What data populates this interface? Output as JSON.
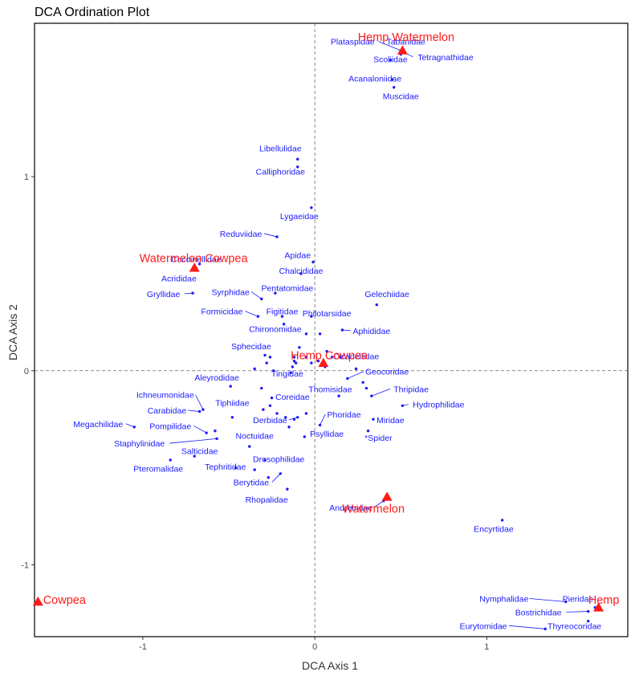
{
  "chart_data": {
    "type": "scatter",
    "title": "DCA Ordination Plot",
    "xlabel": "DCA Axis 1",
    "ylabel": "DCA Axis 2",
    "xlim": [
      -1.63,
      1.82
    ],
    "ylim": [
      -1.37,
      1.79
    ],
    "xticks": [
      -1,
      0,
      1
    ],
    "yticks": [
      -1,
      0,
      1
    ],
    "reference_lines": {
      "x": 0,
      "y": 0,
      "style": "dashed"
    },
    "colors": {
      "family": "#1a1aff",
      "crop": "#ff1a1a",
      "leader": "#1a1aff",
      "frame": "#000000"
    },
    "series": [
      {
        "name": "Families",
        "marker": "dot",
        "points": [
          {
            "label": "Plataspidae",
            "x": 0.5,
            "y": 1.65,
            "lx": 0.22,
            "ly": 1.68
          },
          {
            "label": "Tabanidae",
            "x": 0.5,
            "y": 1.63,
            "lx": 0.53,
            "ly": 1.68
          },
          {
            "label": "Tetragnathidae",
            "x": 0.52,
            "y": 1.64,
            "lx": 0.76,
            "ly": 1.6
          },
          {
            "label": "Scoliidae",
            "x": 0.44,
            "y": 1.6,
            "lx": 0.44,
            "ly": 1.59
          },
          {
            "label": "Acanaloniidae",
            "x": 0.45,
            "y": 1.5,
            "lx": 0.35,
            "ly": 1.49
          },
          {
            "label": "Muscidae",
            "x": 0.46,
            "y": 1.46,
            "lx": 0.5,
            "ly": 1.4
          },
          {
            "label": "Libellulidae",
            "x": -0.1,
            "y": 1.09,
            "lx": -0.2,
            "ly": 1.13
          },
          {
            "label": "Calliphoridae",
            "x": -0.1,
            "y": 1.05,
            "lx": -0.2,
            "ly": 1.01
          },
          {
            "label": "Lygaeidae",
            "x": -0.02,
            "y": 0.84,
            "lx": -0.09,
            "ly": 0.78
          },
          {
            "label": "Reduviidae",
            "x": -0.22,
            "y": 0.69,
            "lx": -0.43,
            "ly": 0.69
          },
          {
            "label": "Coccinellidae",
            "x": -0.67,
            "y": 0.55,
            "lx": -0.69,
            "ly": 0.56
          },
          {
            "label": "Acrididae",
            "x": -0.7,
            "y": 0.53,
            "lx": -0.79,
            "ly": 0.46
          },
          {
            "label": "Gryllidae",
            "x": -0.71,
            "y": 0.4,
            "lx": -0.88,
            "ly": 0.38
          },
          {
            "label": "Apidae",
            "x": -0.01,
            "y": 0.56,
            "lx": -0.1,
            "ly": 0.58
          },
          {
            "label": "Chalcididae",
            "x": -0.08,
            "y": 0.5,
            "lx": -0.08,
            "ly": 0.5
          },
          {
            "label": "Pentatomidae",
            "x": -0.23,
            "y": 0.4,
            "lx": -0.16,
            "ly": 0.41
          },
          {
            "label": "Syrphidae",
            "x": -0.31,
            "y": 0.37,
            "lx": -0.49,
            "ly": 0.39
          },
          {
            "label": "Gelechiidae",
            "x": 0.36,
            "y": 0.34,
            "lx": 0.42,
            "ly": 0.38
          },
          {
            "label": "Formicidae",
            "x": -0.33,
            "y": 0.28,
            "lx": -0.54,
            "ly": 0.29
          },
          {
            "label": "Figitidae",
            "x": -0.19,
            "y": 0.28,
            "lx": -0.19,
            "ly": 0.29
          },
          {
            "label": "Philotarsidae",
            "x": -0.02,
            "y": 0.28,
            "lx": 0.07,
            "ly": 0.28
          },
          {
            "label": "Chironomidae",
            "x": -0.18,
            "y": 0.24,
            "lx": -0.23,
            "ly": 0.2
          },
          {
            "label": "Aphididae",
            "x": 0.16,
            "y": 0.21,
            "lx": 0.33,
            "ly": 0.19
          },
          {
            "label": "Sphecidae",
            "x": -0.29,
            "y": 0.08,
            "lx": -0.37,
            "ly": 0.11
          },
          {
            "label": "Cicadellidae",
            "x": 0.15,
            "y": 0.07,
            "lx": 0.24,
            "ly": 0.06
          },
          {
            "label": "Tingidae",
            "x": -0.14,
            "y": -0.01,
            "lx": -0.16,
            "ly": -0.03
          },
          {
            "label": "Geocoridae",
            "x": 0.19,
            "y": -0.04,
            "lx": 0.42,
            "ly": -0.02
          },
          {
            "label": "Aleyrodidae",
            "x": -0.49,
            "y": -0.08,
            "lx": -0.57,
            "ly": -0.05
          },
          {
            "label": "Thomisidae",
            "x": 0.14,
            "y": -0.13,
            "lx": 0.09,
            "ly": -0.11
          },
          {
            "label": "Thripidae",
            "x": 0.33,
            "y": -0.13,
            "lx": 0.56,
            "ly": -0.11
          },
          {
            "label": "Ichneumonidae",
            "x": -0.65,
            "y": -0.2,
            "lx": -0.87,
            "ly": -0.14
          },
          {
            "label": "Coreidae",
            "x": -0.25,
            "y": -0.14,
            "lx": -0.13,
            "ly": -0.15
          },
          {
            "label": "Hydrophilidae",
            "x": 0.51,
            "y": -0.18,
            "lx": 0.72,
            "ly": -0.19
          },
          {
            "label": "Carabidae",
            "x": -0.67,
            "y": -0.21,
            "lx": -0.86,
            "ly": -0.22
          },
          {
            "label": "Tiphiidae",
            "x": -0.48,
            "y": -0.24,
            "lx": -0.48,
            "ly": -0.18
          },
          {
            "label": "Derbidae",
            "x": -0.1,
            "y": -0.24,
            "lx": -0.26,
            "ly": -0.27
          },
          {
            "label": "Phoridae",
            "x": 0.03,
            "y": -0.28,
            "lx": 0.17,
            "ly": -0.24
          },
          {
            "label": "Miridae",
            "x": 0.34,
            "y": -0.25,
            "lx": 0.44,
            "ly": -0.27
          },
          {
            "label": "Megachilidae",
            "x": -1.05,
            "y": -0.29,
            "lx": -1.26,
            "ly": -0.29
          },
          {
            "label": "Pompilidae",
            "x": -0.63,
            "y": -0.32,
            "lx": -0.84,
            "ly": -0.3
          },
          {
            "label": "Staphylinidae",
            "x": -0.57,
            "y": -0.35,
            "lx": -1.02,
            "ly": -0.39
          },
          {
            "label": "Noctuidae",
            "x": -0.38,
            "y": -0.39,
            "lx": -0.35,
            "ly": -0.35
          },
          {
            "label": "Psyllidae",
            "x": -0.06,
            "y": -0.34,
            "lx": 0.07,
            "ly": -0.34
          },
          {
            "label": "*Spider",
            "x": 0.31,
            "y": -0.31,
            "lx": 0.37,
            "ly": -0.36
          },
          {
            "label": "Salticidae",
            "x": -0.7,
            "y": -0.44,
            "lx": -0.67,
            "ly": -0.43
          },
          {
            "label": "Drosophilidae",
            "x": -0.29,
            "y": -0.46,
            "lx": -0.21,
            "ly": -0.47
          },
          {
            "label": "Pteromalidae",
            "x": -0.84,
            "y": -0.46,
            "lx": -0.91,
            "ly": -0.52
          },
          {
            "label": "Tephritidae",
            "x": -0.46,
            "y": -0.5,
            "lx": -0.52,
            "ly": -0.51
          },
          {
            "label": "Berytidae",
            "x": -0.2,
            "y": -0.53,
            "lx": -0.37,
            "ly": -0.59
          },
          {
            "label": "Rhopalidae",
            "x": -0.16,
            "y": -0.61,
            "lx": -0.28,
            "ly": -0.68
          },
          {
            "label": "Andrenidae",
            "x": 0.4,
            "y": -0.67,
            "lx": 0.21,
            "ly": -0.72
          },
          {
            "label": "Encyrtidae",
            "x": 1.09,
            "y": -0.77,
            "lx": 1.04,
            "ly": -0.83
          },
          {
            "label": "Nymphalidae",
            "x": 1.46,
            "y": -1.19,
            "lx": 1.1,
            "ly": -1.19
          },
          {
            "label": "Pieridae",
            "x": 1.63,
            "y": -1.22,
            "lx": 1.53,
            "ly": -1.19
          },
          {
            "label": "Bostrichidae",
            "x": 1.59,
            "y": -1.24,
            "lx": 1.3,
            "ly": -1.26
          },
          {
            "label": "Thyreocoridae",
            "x": 1.59,
            "y": -1.29,
            "lx": 1.51,
            "ly": -1.33
          },
          {
            "label": "Eurytomidae",
            "x": 1.34,
            "y": -1.33,
            "lx": 0.98,
            "ly": -1.33
          }
        ],
        "unlabeled_points": [
          [
            -0.12,
            0.07
          ],
          [
            -0.11,
            0.04
          ],
          [
            -0.13,
            0.02
          ],
          [
            -0.26,
            0.07
          ],
          [
            -0.28,
            0.04
          ],
          [
            -0.35,
            0.01
          ],
          [
            -0.24,
            0.0
          ],
          [
            -0.05,
            0.07
          ],
          [
            -0.02,
            0.04
          ],
          [
            0.02,
            0.05
          ],
          [
            0.07,
            0.1
          ],
          [
            0.1,
            0.07
          ],
          [
            0.06,
            0.02
          ],
          [
            -0.09,
            0.12
          ],
          [
            -0.05,
            0.19
          ],
          [
            0.03,
            0.19
          ],
          [
            -0.12,
            0.05
          ],
          [
            0.24,
            0.01
          ],
          [
            -0.3,
            -0.2
          ],
          [
            -0.22,
            -0.22
          ],
          [
            -0.17,
            -0.24
          ],
          [
            -0.12,
            -0.25
          ],
          [
            -0.05,
            -0.22
          ],
          [
            -0.26,
            -0.18
          ],
          [
            -0.58,
            -0.31
          ],
          [
            -0.35,
            -0.51
          ],
          [
            -0.27,
            -0.55
          ],
          [
            -0.31,
            -0.09
          ],
          [
            0.28,
            -0.06
          ],
          [
            0.3,
            -0.09
          ],
          [
            -0.15,
            -0.29
          ]
        ]
      },
      {
        "name": "Crops",
        "marker": "triangle",
        "points": [
          {
            "label": "Hemp Watermelon",
            "x": 0.51,
            "y": 1.65,
            "lx": 0.25,
            "ly": 1.7
          },
          {
            "label": "Watermelon Cowpea",
            "x": -0.7,
            "y": 0.53,
            "lx": -1.02,
            "ly": 0.56
          },
          {
            "label": "Hemp Cowpea",
            "x": 0.05,
            "y": 0.04,
            "lx": -0.14,
            "ly": 0.06
          },
          {
            "label": "Watermelon",
            "x": 0.42,
            "y": -0.65,
            "lx": 0.16,
            "ly": -0.73
          },
          {
            "label": "Hemp",
            "x": 1.65,
            "y": -1.22,
            "lx": 1.59,
            "ly": -1.2
          },
          {
            "label": "Cowpea",
            "x": -1.61,
            "y": -1.19,
            "lx": -1.58,
            "ly": -1.2
          }
        ]
      }
    ]
  }
}
